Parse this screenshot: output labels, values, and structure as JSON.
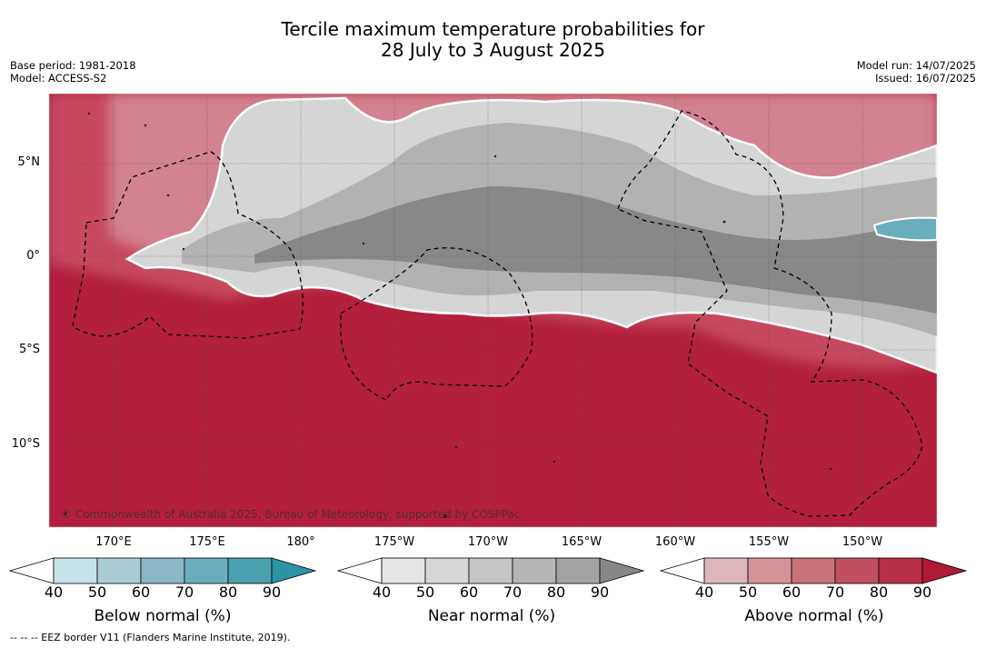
{
  "title": {
    "line1": "Tercile maximum temperature probabilities for",
    "line2": "28 July to 3 August 2025"
  },
  "meta_left": {
    "base_period": "Base period: 1981-2018",
    "model": "Model: ACCESS-S2"
  },
  "meta_right": {
    "model_run": "Model run: 14/07/2025",
    "issued": "Issued: 16/07/2025"
  },
  "map": {
    "lat_labels": [
      "5°N",
      "0°",
      "5°S",
      "10°S"
    ],
    "lon_labels": [
      "170°E",
      "175°E",
      "180°",
      "175°W",
      "170°W",
      "165°W",
      "160°W",
      "155°W",
      "150°W"
    ],
    "copyright": "© Commonwealth of Australia 2025, Bureau of Meteorology, supported by COSPPac",
    "colors": {
      "above_dark": "#b31f3c",
      "above_mid": "#c64a5f",
      "near_dark": "#868686",
      "below_mid": "#6aaebe"
    }
  },
  "colorbars": {
    "below": {
      "title": "Below normal (%)",
      "ticks": [
        "40",
        "50",
        "60",
        "70",
        "80",
        "90"
      ],
      "colors": [
        "#c8e2e9",
        "#a9ccd4",
        "#89b7c3",
        "#6aaebe",
        "#4a9fb0",
        "#2d93a5"
      ]
    },
    "near": {
      "title": "Near normal (%)",
      "ticks": [
        "40",
        "50",
        "60",
        "70",
        "80",
        "90"
      ],
      "colors": [
        "#e6e6e6",
        "#d7d7d7",
        "#c6c6c6",
        "#b5b5b5",
        "#a3a3a3",
        "#868686"
      ]
    },
    "above": {
      "title": "Above normal (%)",
      "ticks": [
        "40",
        "50",
        "60",
        "70",
        "80",
        "90"
      ],
      "colors": [
        "#deb6bc",
        "#d49399",
        "#c87179",
        "#c04f61",
        "#b82f48",
        "#b01a38"
      ]
    }
  },
  "footer": {
    "eez_note": "--  --  -- EEZ border V11 (Flanders Marine Institute, 2019)."
  }
}
